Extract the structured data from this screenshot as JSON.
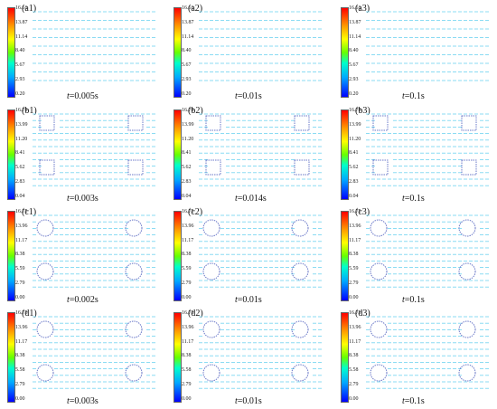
{
  "rows": [
    {
      "id": "a",
      "obstacle": "none",
      "ticks": [
        "16.61",
        "13.87",
        "11.14",
        "8.40",
        "5.67",
        "2.93",
        "0.20"
      ],
      "panels": [
        {
          "label": "(a1)",
          "t_var": "t",
          "t_value": "=0.005s"
        },
        {
          "label": "(a2)",
          "t_var": "t",
          "t_value": "=0.01s"
        },
        {
          "label": "(a3)",
          "t_var": "t",
          "t_value": "=0.1s"
        }
      ]
    },
    {
      "id": "b",
      "obstacle": "square",
      "ticks": [
        "16.78",
        "13.99",
        "11.20",
        "8.41",
        "5.62",
        "2.83",
        "0.04"
      ],
      "panels": [
        {
          "label": "(b1)",
          "t_var": "t",
          "t_value": "=0.003s"
        },
        {
          "label": "(b2)",
          "t_var": "t",
          "t_value": "=0.014s"
        },
        {
          "label": "(b3)",
          "t_var": "t",
          "t_value": "=0.1s"
        }
      ]
    },
    {
      "id": "c",
      "obstacle": "circle",
      "ticks": [
        "16.75",
        "13.96",
        "11.17",
        "8.38",
        "5.59",
        "2.79",
        "0.00"
      ],
      "panels": [
        {
          "label": "(c1)",
          "t_var": "t",
          "t_value": "=0.002s"
        },
        {
          "label": "(c2)",
          "t_var": "t",
          "t_value": "=0.01s"
        },
        {
          "label": "(c3)",
          "t_var": "t",
          "t_value": "=0.1s"
        }
      ]
    },
    {
      "id": "d",
      "obstacle": "circle",
      "ticks": [
        "16.75",
        "13.96",
        "11.17",
        "8.38",
        "5.58",
        "2.79",
        "0.00"
      ],
      "panels": [
        {
          "label": "(d1)",
          "t_var": "t",
          "t_value": "=0.003s"
        },
        {
          "label": "(d2)",
          "t_var": "t",
          "t_value": "=0.01s"
        },
        {
          "label": "(d3)",
          "t_var": "t",
          "t_value": "=0.1s"
        }
      ]
    }
  ],
  "colors": {
    "vector": "#6fd3f0",
    "obstacle": "#6a78c8",
    "colorbar_stops": [
      "#ff0000",
      "#ff9900",
      "#ffff00",
      "#66ff00",
      "#00ffcc",
      "#00aaff",
      "#0000ff"
    ]
  }
}
